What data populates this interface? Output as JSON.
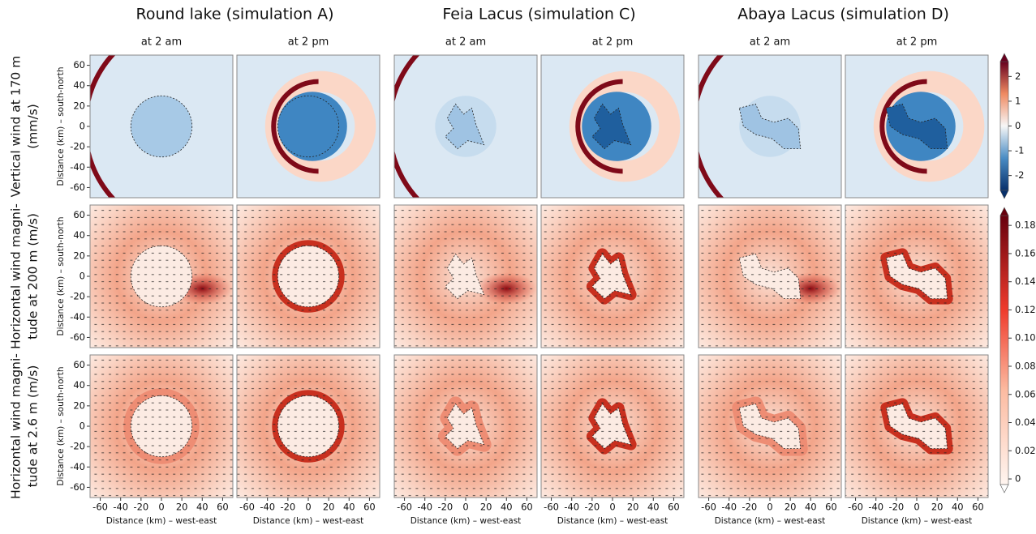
{
  "column_groups": [
    {
      "title": "Round lake (simulation A)",
      "panels": [
        "at 2 am",
        "at 2 pm"
      ]
    },
    {
      "title": "Feia Lacus (simulation C)",
      "panels": [
        "at 2 am",
        "at 2 pm"
      ]
    },
    {
      "title": "Abaya Lacus (simulation D)",
      "panels": [
        "at 2 am",
        "at 2 pm"
      ]
    }
  ],
  "rows": [
    {
      "label": [
        "Vertical wind at 170 m",
        "(mm/s)"
      ]
    },
    {
      "label": [
        "Horizontal wind magni-",
        "tude at 200 m (m/s)"
      ]
    },
    {
      "label": [
        "Horizontal wind magni-",
        "tude at 2.6 m (m/s)"
      ]
    }
  ],
  "axes": {
    "xlabel": "Distance (km) – west-east",
    "ylabel": "Distance (km) – south-north",
    "xlim": [
      -70,
      70
    ],
    "ylim": [
      -70,
      70
    ],
    "xticks": [
      -60,
      -40,
      -20,
      0,
      20,
      40,
      60
    ],
    "yticks": [
      -60,
      -40,
      -20,
      0,
      20,
      40,
      60
    ]
  },
  "colorbars": [
    {
      "lim": [
        -2.6,
        2.6
      ],
      "ticks": [
        -2,
        -1,
        0,
        1,
        2
      ]
    },
    {
      "lim": [
        -0.004,
        0.187
      ],
      "ticks": [
        0,
        0.02,
        0.04,
        0.06,
        0.08,
        {
          "value": 0.1,
          "label": "0.10"
        },
        0.12,
        0.14,
        0.16,
        0.18
      ]
    }
  ]
}
